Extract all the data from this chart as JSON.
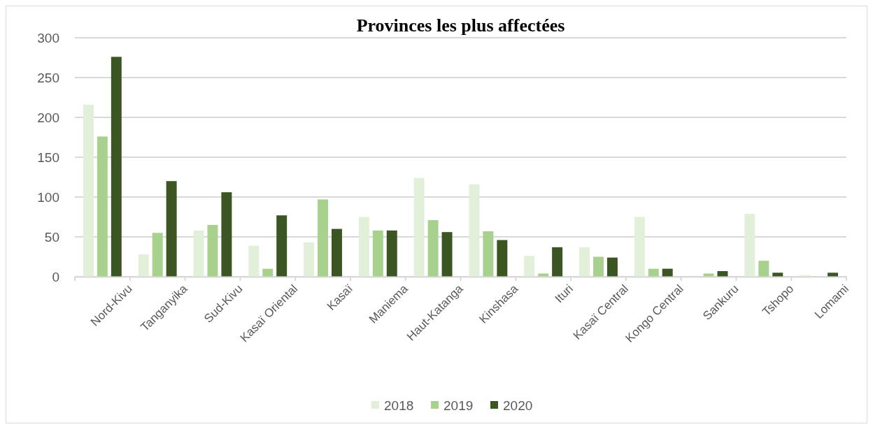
{
  "chart_data": {
    "type": "bar",
    "title": "Provinces les plus affectées",
    "categories": [
      "Nord-Kivu",
      "Tanganyika",
      "Sud-Kivu",
      "Kasaï Oriental",
      "Kasaï",
      "Maniema",
      "Haut-Katanga",
      "Kinshasa",
      "Ituri",
      "Kasaï Central",
      "Kongo Central",
      "Sankuru",
      "Tshopo",
      "Lomami"
    ],
    "series": [
      {
        "name": "2018",
        "color": "#e2efd9",
        "values": [
          216,
          28,
          58,
          39,
          43,
          75,
          124,
          116,
          26,
          37,
          75,
          0,
          79,
          2
        ]
      },
      {
        "name": "2019",
        "color": "#a9d18e",
        "values": [
          176,
          55,
          65,
          10,
          97,
          58,
          71,
          57,
          4,
          25,
          10,
          4,
          20,
          0
        ]
      },
      {
        "name": "2020",
        "color": "#3b5623",
        "values": [
          276,
          120,
          106,
          77,
          60,
          58,
          56,
          46,
          37,
          24,
          10,
          7,
          5,
          5
        ]
      }
    ],
    "ylim": [
      0,
      300
    ],
    "yticks": [
      0,
      50,
      100,
      150,
      200,
      250,
      300
    ],
    "grid": "y",
    "legend": "bottom"
  }
}
